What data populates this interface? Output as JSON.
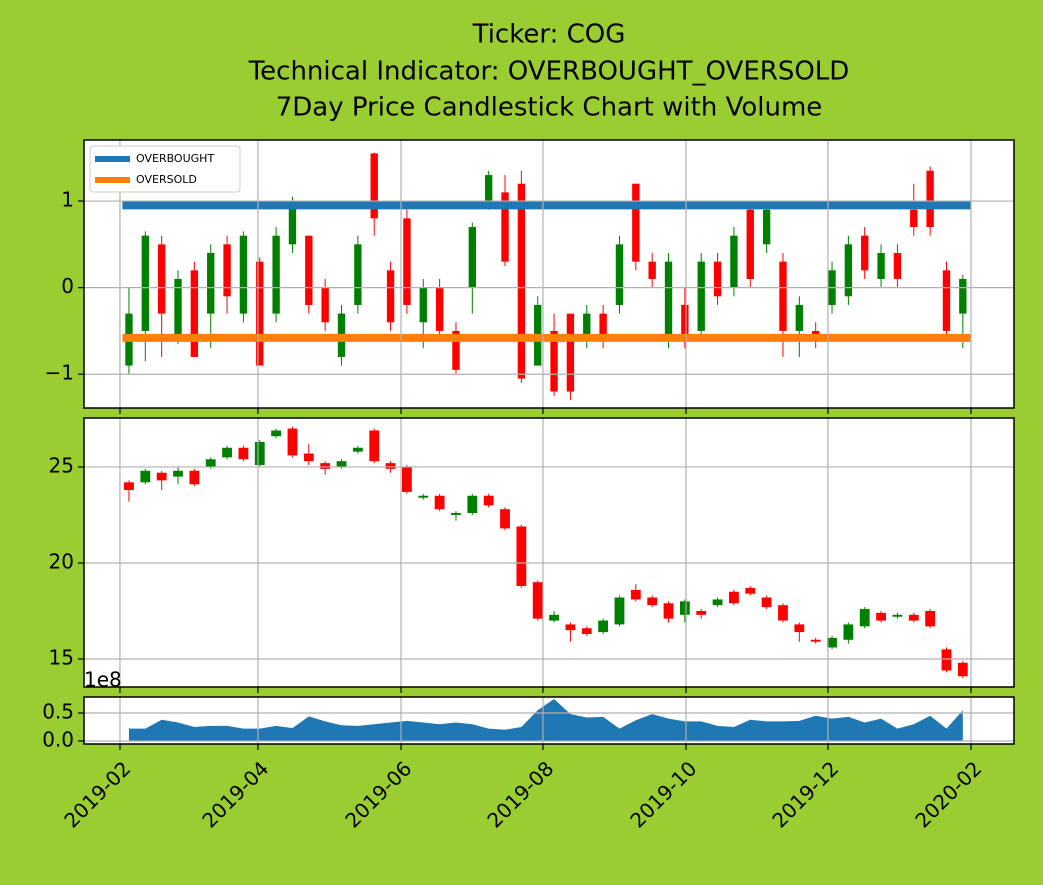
{
  "chart_data": [
    {
      "type": "candlestick",
      "title": [
        "Ticker: COG",
        "Technical Indicator: OVERBOUGHT_OVERSOLD",
        "7Day Price Candlestick Chart with Volume"
      ],
      "categories": [
        null,
        null,
        null,
        null,
        null,
        null,
        null,
        null,
        null,
        null,
        null,
        null,
        null,
        null,
        null,
        null,
        null,
        null,
        null,
        null,
        null,
        null,
        null,
        null,
        null,
        null,
        null,
        null,
        null,
        null,
        null,
        null,
        null,
        null,
        null,
        null,
        null,
        null,
        null,
        null,
        null,
        null,
        null,
        null,
        null,
        null,
        null,
        null,
        null,
        null,
        null,
        null
      ],
      "open": [
        -0.9,
        -0.5,
        0.5,
        -0.6,
        0.2,
        -0.3,
        0.5,
        -0.3,
        0.3,
        -0.3,
        0.5,
        0.6,
        0,
        -0.8,
        -0.2,
        1.55,
        0.2,
        0.8,
        -0.4,
        0,
        -0.5,
        0,
        1,
        1.1,
        1.2,
        -0.9,
        -0.5,
        -0.3,
        -0.6,
        -0.3,
        -0.2,
        1.2,
        0.3,
        -0.6,
        -0.2,
        -0.5,
        0.3,
        0,
        0.9,
        0.5,
        0.3,
        -0.5,
        -0.5,
        -0.2,
        -0.1,
        0.6,
        0.1,
        0.4,
        0.9,
        1.35,
        0.2,
        -0.3
      ],
      "close": [
        -0.3,
        0.6,
        -0.3,
        0.1,
        -0.8,
        0.4,
        -0.1,
        0.6,
        -0.9,
        0.6,
        1,
        -0.2,
        -0.4,
        -0.3,
        0.5,
        0.8,
        -0.4,
        -0.2,
        0,
        -0.5,
        -0.95,
        0.7,
        1.3,
        0.3,
        -1.05,
        -0.2,
        -1.2,
        -1.2,
        -0.3,
        -0.6,
        0.5,
        0.3,
        0.1,
        0.3,
        -0.6,
        0.3,
        -0.1,
        0.6,
        0.1,
        0.9,
        -0.5,
        -0.2,
        -0.6,
        0.2,
        0.5,
        0.2,
        0.4,
        0.1,
        0.7,
        0.7,
        -0.5,
        0.1
      ],
      "high": [
        0,
        0.65,
        0.6,
        0.2,
        0.3,
        0.5,
        0.6,
        0.65,
        0.35,
        0.7,
        1.05,
        0.6,
        0.1,
        -0.2,
        0.6,
        1.56,
        0.3,
        0.9,
        0.1,
        0.1,
        -0.4,
        0.75,
        1.35,
        1.3,
        1.35,
        -0.1,
        -0.3,
        -0.3,
        -0.2,
        -0.2,
        0.6,
        1.2,
        0.4,
        0.4,
        0,
        0.4,
        0.4,
        0.7,
        0.95,
        0.95,
        0.4,
        -0.1,
        -0.4,
        0.3,
        0.6,
        0.7,
        0.5,
        0.5,
        1.2,
        1.4,
        0.3,
        0.15
      ],
      "low": [
        -1,
        -0.85,
        -0.8,
        -0.65,
        -0.8,
        -0.7,
        -0.3,
        -0.4,
        -0.9,
        -0.4,
        0.4,
        -0.3,
        -0.5,
        -0.9,
        -0.3,
        0.6,
        -0.5,
        -0.3,
        -0.7,
        -0.6,
        -0.99,
        -0.3,
        0.9,
        0.25,
        -1.1,
        -0.9,
        -1.25,
        -1.3,
        -0.7,
        -0.7,
        -0.3,
        0.2,
        0,
        -0.7,
        -0.7,
        -0.6,
        -0.2,
        -0.1,
        0,
        0.4,
        -0.8,
        -0.8,
        -0.7,
        -0.3,
        -0.2,
        0.1,
        0,
        0,
        0.6,
        0.6,
        -0.6,
        -0.7
      ],
      "up_color": "green",
      "down_color": "red",
      "lines": [
        {
          "name": "OVERBOUGHT",
          "color": "#1f77b4",
          "value": 0.95
        },
        {
          "name": "OVERSOLD",
          "color": "#ff7f0e",
          "value": -0.58
        }
      ],
      "legend": "upper left",
      "xlim": [
        -2.75,
        54.13
      ],
      "xticks": [
        {
          "value": -0.55,
          "label": "2019-02"
        },
        {
          "value": 7.89,
          "label": "2019-04"
        },
        {
          "value": 16.64,
          "label": "2019-06"
        },
        {
          "value": 25.32,
          "label": "2019-08"
        },
        {
          "value": 34.07,
          "label": "2019-10"
        },
        {
          "value": 42.75,
          "label": "2019-12"
        },
        {
          "value": 51.5,
          "label": "2020-02"
        }
      ],
      "ylim": [
        -1.39,
        1.705
      ],
      "yticks": [
        {
          "value": -1,
          "label": "−1"
        },
        0,
        1
      ],
      "grid": true
    },
    {
      "type": "candlestick",
      "categories": [
        null,
        null,
        null,
        null,
        null,
        null,
        null,
        null,
        null,
        null,
        null,
        null,
        null,
        null,
        null,
        null,
        null,
        null,
        null,
        null,
        null,
        null,
        null,
        null,
        null,
        null,
        null,
        null,
        null,
        null,
        null,
        null,
        null,
        null,
        null,
        null,
        null,
        null,
        null,
        null,
        null,
        null,
        null,
        null,
        null,
        null,
        null,
        null,
        null,
        null,
        null,
        null
      ],
      "open": [
        24.2,
        24.2,
        24.7,
        24.5,
        24.8,
        25,
        25.5,
        26,
        25.1,
        26.6,
        27,
        25.7,
        25.2,
        25,
        25.8,
        26.9,
        25.2,
        25,
        23.4,
        23.5,
        22.5,
        22.6,
        23.5,
        22.8,
        21.9,
        19,
        17,
        16.8,
        16.6,
        16.4,
        16.8,
        18.6,
        18.2,
        17.9,
        17.3,
        17.5,
        17.8,
        18.5,
        18.7,
        18.2,
        17.8,
        16.8,
        16,
        15.6,
        16,
        16.7,
        17.4,
        17.2,
        17.3,
        17.5,
        15.5,
        14.8
      ],
      "close": [
        23.8,
        24.8,
        24.3,
        24.8,
        24.1,
        25.4,
        26,
        25.4,
        26.3,
        26.9,
        25.6,
        25.3,
        24.9,
        25.3,
        26,
        25.3,
        24.9,
        23.7,
        23.5,
        22.8,
        22.6,
        23.5,
        23,
        21.8,
        18.8,
        17.1,
        17.3,
        16.5,
        16.3,
        17,
        18.2,
        18.1,
        17.8,
        17.1,
        18,
        17.3,
        18.1,
        17.9,
        18.4,
        17.7,
        17,
        16.4,
        15.9,
        16.1,
        16.8,
        17.6,
        17,
        17.3,
        17,
        16.7,
        14.4,
        14.1
      ],
      "high": [
        24.3,
        24.9,
        24.8,
        25,
        24.9,
        25.5,
        26.1,
        26.1,
        26.4,
        27,
        27.1,
        26.2,
        25.3,
        25.4,
        26.1,
        27,
        25.3,
        25.1,
        23.6,
        23.6,
        22.7,
        23.6,
        23.6,
        22.9,
        22,
        19.1,
        17.5,
        16.9,
        16.7,
        17.1,
        18.3,
        18.9,
        18.3,
        18,
        18.1,
        17.6,
        18.2,
        18.6,
        18.8,
        18.3,
        17.9,
        16.9,
        16.1,
        16.2,
        16.9,
        17.7,
        17.5,
        17.4,
        17.4,
        17.6,
        15.6,
        14.9
      ],
      "low": [
        23.2,
        24.1,
        23.8,
        24.1,
        24,
        24.9,
        25.4,
        25.3,
        25,
        26.5,
        25.5,
        25.1,
        24.6,
        24.9,
        25.7,
        25.2,
        24.7,
        23.6,
        23.3,
        22.7,
        22.2,
        22.5,
        22.9,
        21.7,
        18.7,
        17,
        16.9,
        15.9,
        16.2,
        16.3,
        16.7,
        18,
        17.7,
        16.9,
        16.9,
        17.1,
        17.7,
        17.8,
        18.3,
        17.6,
        16.9,
        15.9,
        15.8,
        15.5,
        15.8,
        16.6,
        16.9,
        17.1,
        16.9,
        16.6,
        14.3,
        14
      ],
      "up_color": "green",
      "down_color": "red",
      "xlim": [
        -2.75,
        54.13
      ],
      "xticks": [
        {
          "value": -0.55,
          "label": "2019-02"
        },
        {
          "value": 7.89,
          "label": "2019-04"
        },
        {
          "value": 16.64,
          "label": "2019-06"
        },
        {
          "value": 25.32,
          "label": "2019-08"
        },
        {
          "value": 34.07,
          "label": "2019-10"
        },
        {
          "value": 42.75,
          "label": "2019-12"
        },
        {
          "value": 51.5,
          "label": "2020-02"
        }
      ],
      "ylim": [
        13.54,
        27.55
      ],
      "yticks": [
        15,
        20,
        25
      ],
      "grid": true
    },
    {
      "type": "area",
      "categories": [
        null,
        null,
        null,
        null,
        null,
        null,
        null,
        null,
        null,
        null,
        null,
        null,
        null,
        null,
        null,
        null,
        null,
        null,
        null,
        null,
        null,
        null,
        null,
        null,
        null,
        null,
        null,
        null,
        null,
        null,
        null,
        null,
        null,
        null,
        null,
        null,
        null,
        null,
        null,
        null,
        null,
        null,
        null,
        null,
        null,
        null,
        null,
        null,
        null,
        null,
        null,
        null
      ],
      "values": [
        0.22,
        0.22,
        0.38,
        0.33,
        0.25,
        0.27,
        0.27,
        0.22,
        0.22,
        0.27,
        0.23,
        0.44,
        0.35,
        0.28,
        0.27,
        0.3,
        0.33,
        0.36,
        0.33,
        0.3,
        0.33,
        0.3,
        0.22,
        0.2,
        0.25,
        0.55,
        0.75,
        0.48,
        0.42,
        0.43,
        0.22,
        0.37,
        0.48,
        0.4,
        0.35,
        0.35,
        0.27,
        0.25,
        0.38,
        0.35,
        0.35,
        0.36,
        0.45,
        0.4,
        0.43,
        0.33,
        0.4,
        0.22,
        0.3,
        0.45,
        0.22,
        0.55
      ],
      "color": "#1f77b4",
      "offset_label": "1e8",
      "xlim": [
        -2.75,
        54.13
      ],
      "xticks": [
        {
          "value": -0.55,
          "label": "2019-02"
        },
        {
          "value": 7.89,
          "label": "2019-04"
        },
        {
          "value": 16.64,
          "label": "2019-06"
        },
        {
          "value": 25.32,
          "label": "2019-08"
        },
        {
          "value": 34.07,
          "label": "2019-10"
        },
        {
          "value": 42.75,
          "label": "2019-12"
        },
        {
          "value": 51.5,
          "label": "2020-02"
        }
      ],
      "ylim": [
        -0.054,
        0.786
      ],
      "yticks": [
        {
          "value": 0,
          "label": "0.0"
        },
        0.5
      ],
      "grid": true
    }
  ]
}
